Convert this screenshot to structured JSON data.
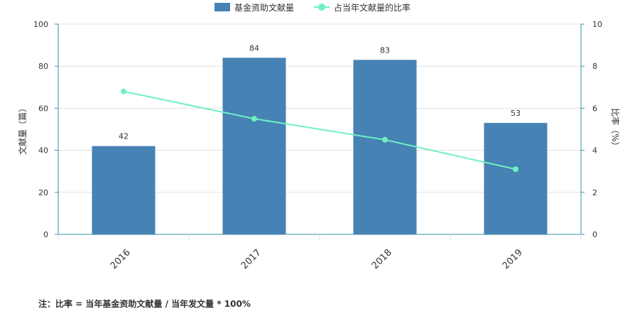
{
  "legend": {
    "bar_label": "基金资助文献量",
    "line_label": "占当年文献量的比率"
  },
  "note": "注：比率 = 当年基金资助文献量 / 当年发文量 * 100%",
  "colors": {
    "bar": "#4682b4",
    "line": "#6ff0c2",
    "axis": "#3a8fa8",
    "grid": "#e0e0e0",
    "text": "#333333"
  },
  "chart_data": {
    "type": "bar",
    "categories": [
      "2016",
      "2017",
      "2018",
      "2019"
    ],
    "series": [
      {
        "name": "基金资助文献量",
        "type": "bar",
        "axis": "left",
        "values": [
          42,
          84,
          83,
          53
        ]
      },
      {
        "name": "占当年文献量的比率",
        "type": "line",
        "axis": "right",
        "values": [
          6.8,
          5.5,
          4.5,
          3.1
        ]
      }
    ],
    "ylabel": "文献量（篇）",
    "y2label": "比率（%）",
    "ylim": [
      0,
      100
    ],
    "y2lim": [
      0,
      10
    ],
    "yticks": [
      "0",
      "20",
      "40",
      "60",
      "80",
      "100"
    ],
    "y2ticks": [
      "0",
      "2",
      "4",
      "6",
      "8",
      "10"
    ],
    "bar_labels": [
      "42",
      "84",
      "83",
      "53"
    ],
    "grid": true,
    "legend_position": "top-center"
  }
}
